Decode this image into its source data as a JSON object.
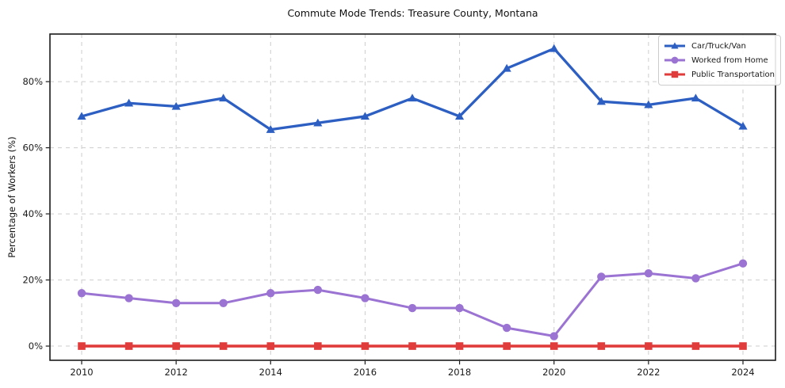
{
  "title": "Commute Mode Trends: Treasure County, Montana",
  "ylabel": "Percentage of Workers (%)",
  "colors": {
    "car": "#2d5fc3",
    "home": "#9b73d2",
    "transit": "#e13c3c",
    "grid": "#cdcdcd",
    "axis": "#1a1a1a",
    "text": "#1a1a1a",
    "legend_border": "#cccccc"
  },
  "chart_data": {
    "type": "line",
    "title": "Commute Mode Trends: Treasure County, Montana",
    "xlabel": "",
    "ylabel": "Percentage of Workers (%)",
    "x": [
      2010,
      2011,
      2012,
      2013,
      2014,
      2015,
      2016,
      2017,
      2018,
      2019,
      2020,
      2021,
      2022,
      2023,
      2024
    ],
    "series": [
      {
        "name": "Car/Truck/Van",
        "color": "#2d5fc3",
        "marker": "triangle",
        "line_width": 3.3,
        "values": [
          69.5,
          73.5,
          72.5,
          75,
          65.5,
          67.5,
          69.5,
          75,
          69.5,
          84,
          90,
          74,
          73,
          75,
          66.5
        ]
      },
      {
        "name": "Worked from Home",
        "color": "#9b73d2",
        "marker": "circle",
        "line_width": 3.0,
        "values": [
          16,
          14.5,
          13,
          13,
          16,
          17,
          14.5,
          11.5,
          11.5,
          5.5,
          3,
          21,
          22,
          20.5,
          25
        ]
      },
      {
        "name": "Public Transportation",
        "color": "#e13c3c",
        "marker": "square",
        "line_width": 3.6,
        "values": [
          0,
          0,
          0,
          0,
          0,
          0,
          0,
          0,
          0,
          0,
          0,
          0,
          0,
          0,
          0
        ]
      }
    ],
    "xticks": [
      2010,
      2012,
      2014,
      2016,
      2018,
      2020,
      2022,
      2024
    ],
    "x_tick_labels": [
      "2010",
      "2012",
      "2014",
      "2016",
      "2018",
      "2020",
      "2022",
      "2024"
    ],
    "yticks": [
      0,
      20,
      40,
      60,
      80
    ],
    "y_tick_labels": [
      "0%",
      "20%",
      "40%",
      "60%",
      "80%"
    ],
    "ylim": [
      -4.3,
      94.4
    ],
    "grid": true,
    "legend_position": "upper right"
  }
}
